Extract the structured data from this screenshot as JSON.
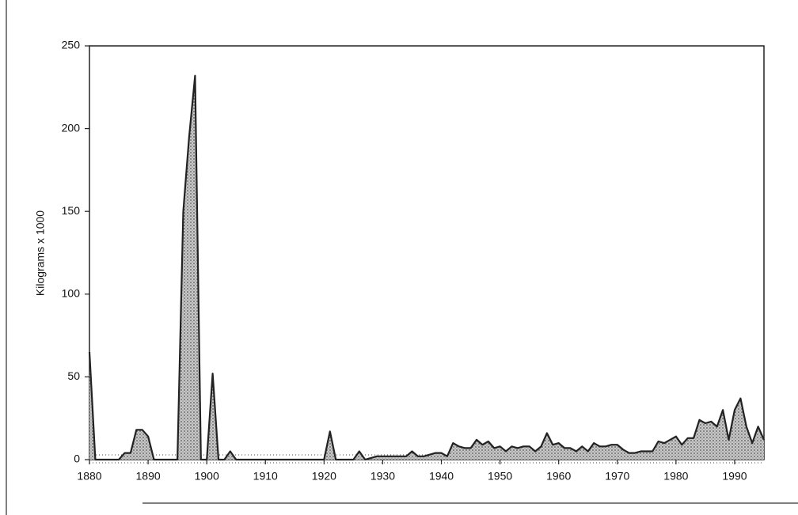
{
  "chart_data": {
    "type": "area",
    "y_label": "Kilograms x 1000",
    "x": [
      1880,
      1881,
      1882,
      1883,
      1884,
      1885,
      1886,
      1887,
      1888,
      1889,
      1890,
      1891,
      1892,
      1893,
      1894,
      1895,
      1896,
      1897,
      1898,
      1899,
      1900,
      1901,
      1902,
      1903,
      1904,
      1905,
      1906,
      1907,
      1908,
      1909,
      1910,
      1911,
      1912,
      1913,
      1914,
      1915,
      1916,
      1917,
      1918,
      1919,
      1920,
      1921,
      1922,
      1923,
      1924,
      1925,
      1926,
      1927,
      1928,
      1929,
      1930,
      1931,
      1932,
      1933,
      1934,
      1935,
      1936,
      1937,
      1938,
      1939,
      1940,
      1941,
      1942,
      1943,
      1944,
      1945,
      1946,
      1947,
      1948,
      1949,
      1950,
      1951,
      1952,
      1953,
      1954,
      1955,
      1956,
      1957,
      1958,
      1959,
      1960,
      1961,
      1962,
      1963,
      1964,
      1965,
      1966,
      1967,
      1968,
      1969,
      1970,
      1971,
      1972,
      1973,
      1974,
      1975,
      1976,
      1977,
      1978,
      1979,
      1980,
      1981,
      1982,
      1983,
      1984,
      1985,
      1986,
      1987,
      1988,
      1989,
      1990,
      1991,
      1992,
      1993,
      1994,
      1995
    ],
    "values": [
      65,
      0,
      0,
      0,
      0,
      0,
      4,
      4,
      18,
      18,
      14,
      0,
      0,
      0,
      0,
      0,
      150,
      195,
      232,
      0,
      0,
      52,
      0,
      0,
      5,
      0,
      0,
      0,
      0,
      0,
      0,
      0,
      0,
      0,
      0,
      0,
      0,
      0,
      0,
      0,
      0,
      17,
      0,
      0,
      0,
      0,
      5,
      0,
      1,
      2,
      2,
      2,
      2,
      2,
      2,
      5,
      2,
      2,
      3,
      4,
      4,
      2,
      10,
      8,
      7,
      7,
      12,
      9,
      11,
      7,
      8,
      5,
      8,
      7,
      8,
      8,
      5,
      8,
      16,
      9,
      10,
      7,
      7,
      5,
      8,
      5,
      10,
      8,
      8,
      9,
      9,
      6,
      4,
      4,
      5,
      5,
      5,
      11,
      10,
      12,
      14,
      9,
      13,
      13,
      24,
      22,
      23,
      20,
      30,
      12,
      30,
      37,
      20,
      10,
      20,
      12
    ],
    "color": "#222222",
    "fill": "#b8b8b8",
    "xlim": [
      1880,
      1995
    ],
    "xticks": [
      1880,
      1890,
      1900,
      1910,
      1920,
      1930,
      1940,
      1950,
      1960,
      1970,
      1980,
      1990
    ],
    "ylim": [
      0,
      250
    ],
    "yticks": [
      0,
      50,
      100,
      150,
      200,
      250
    ]
  }
}
